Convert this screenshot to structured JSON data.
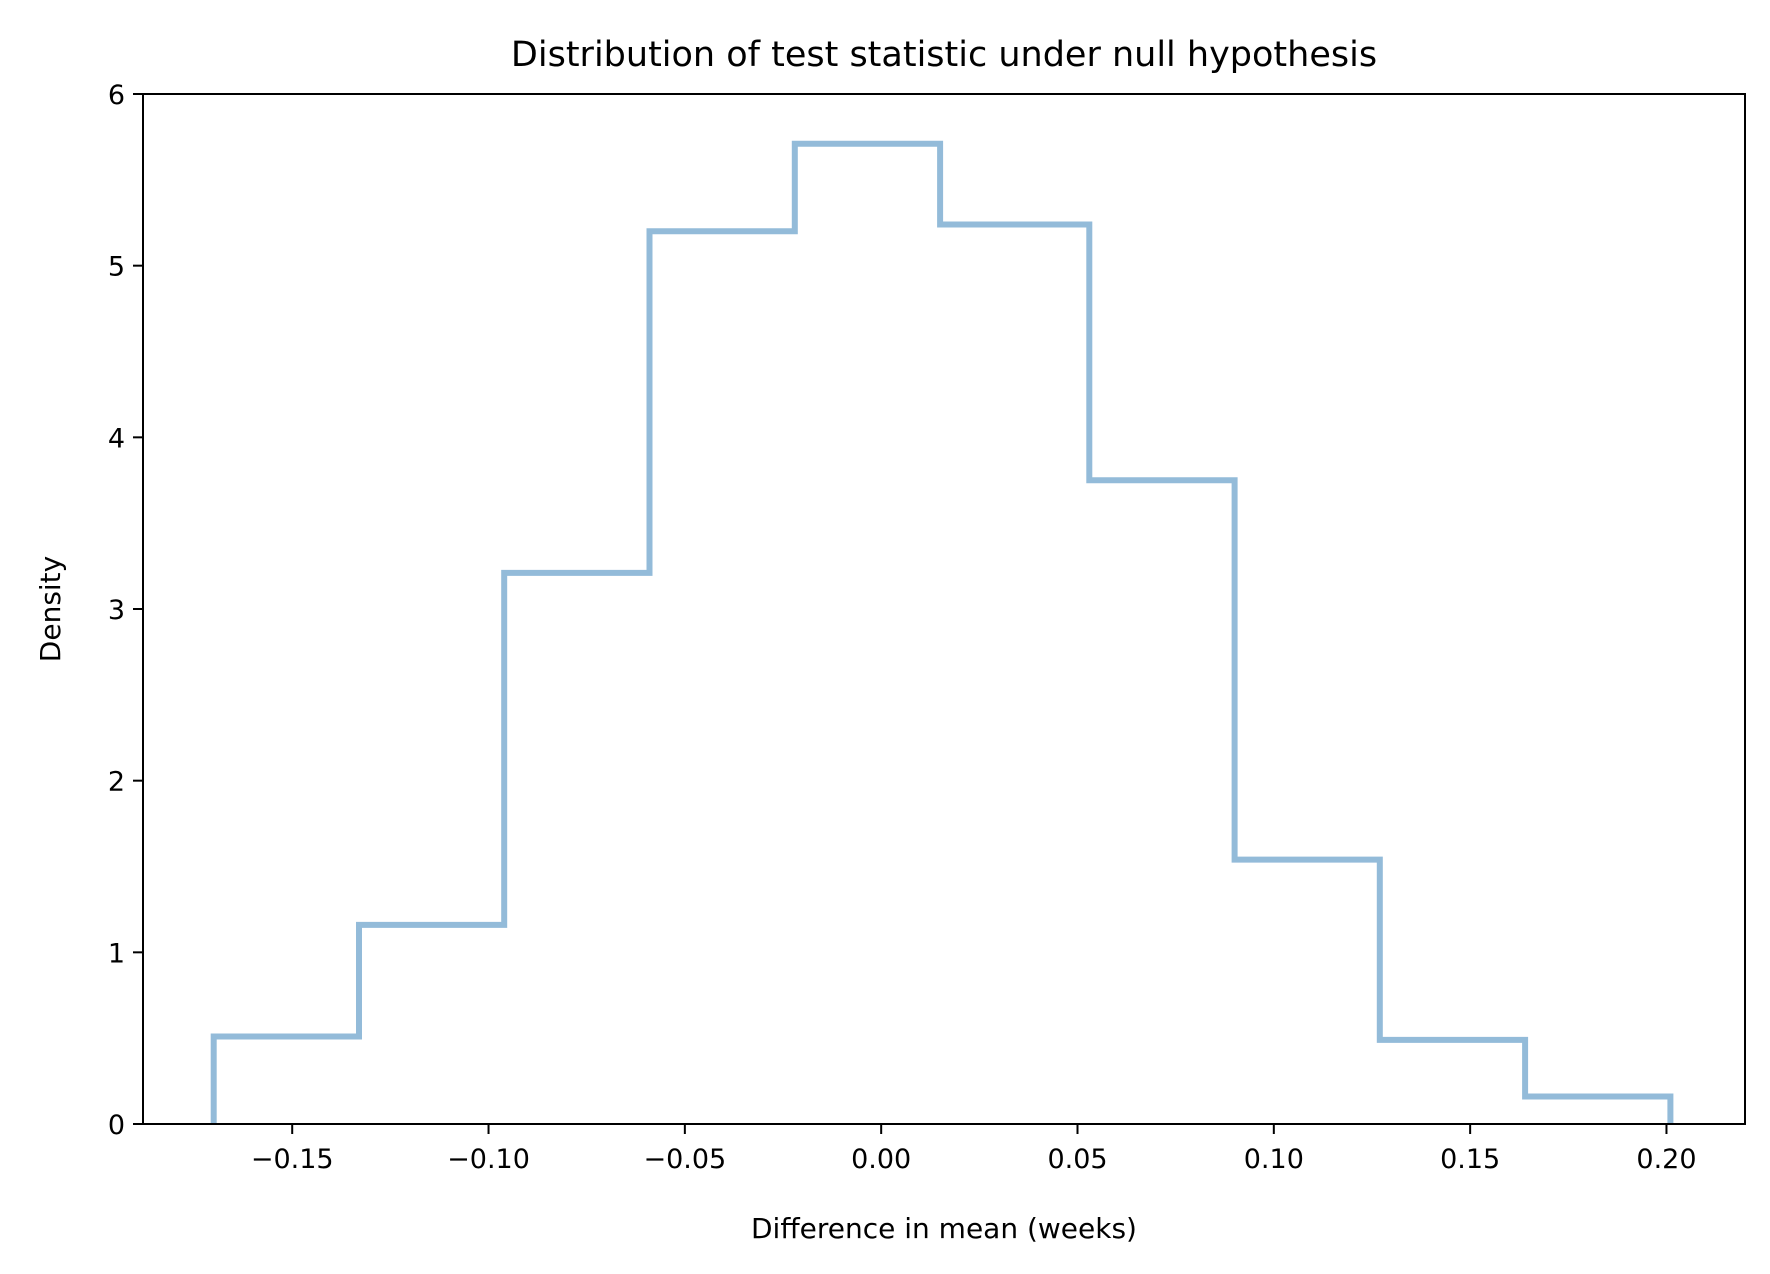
{
  "chart_data": {
    "type": "histogram",
    "histtype": "step",
    "title": "Distribution of test statistic under null hypothesis",
    "xlabel": "Difference in mean (weeks)",
    "ylabel": "Density",
    "xlim": [
      -0.188,
      0.22
    ],
    "ylim": [
      0,
      6
    ],
    "grid": false,
    "legend": "none",
    "color": "#93bbd9",
    "bin_edges": [
      -0.17,
      -0.133,
      -0.096,
      -0.059,
      -0.022,
      0.015,
      0.053,
      0.09,
      0.127,
      0.164,
      0.201
    ],
    "densities": [
      0.51,
      1.16,
      3.21,
      5.2,
      5.71,
      5.24,
      3.75,
      1.54,
      0.49,
      0.16
    ],
    "x_ticks": [
      -0.15,
      -0.1,
      -0.05,
      0.0,
      0.05,
      0.1,
      0.15,
      0.2
    ],
    "x_tick_labels": [
      "−0.15",
      "−0.10",
      "−0.05",
      "0.00",
      "0.05",
      "0.10",
      "0.15",
      "0.20"
    ],
    "y_ticks": [
      0,
      1,
      2,
      3,
      4,
      5,
      6
    ],
    "y_tick_labels": [
      "0",
      "1",
      "2",
      "3",
      "4",
      "5",
      "6"
    ]
  }
}
